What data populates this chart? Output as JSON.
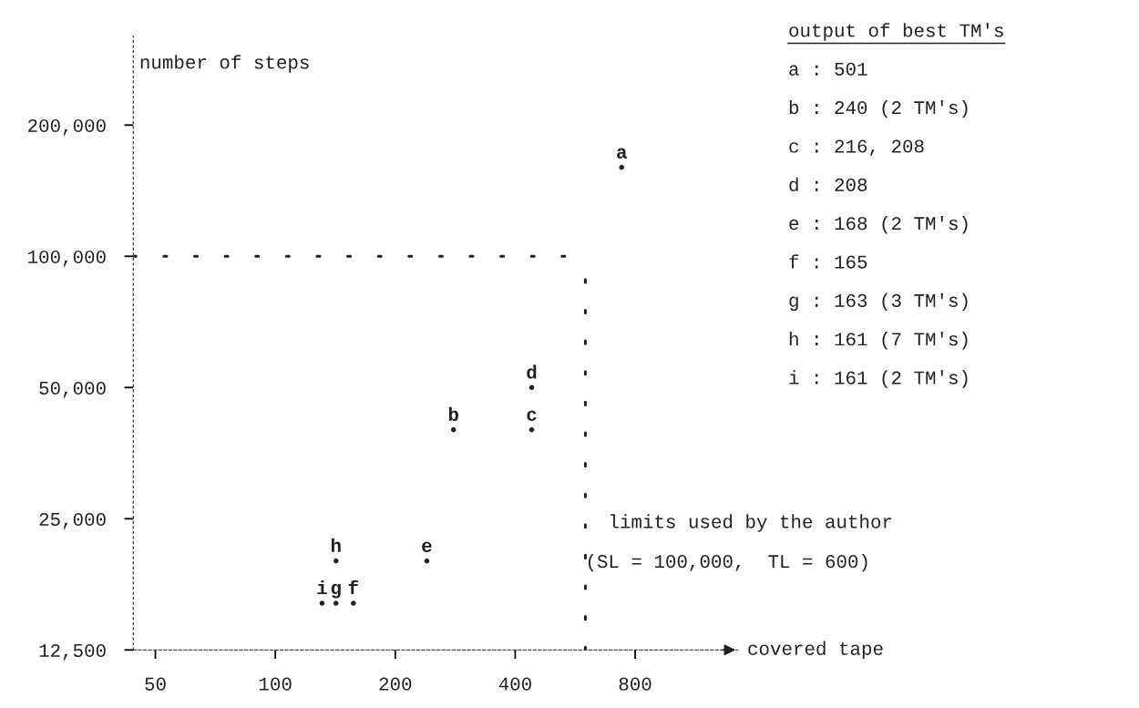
{
  "chart_data": {
    "type": "scatter",
    "ylabel": "number of steps",
    "xlabel": "covered tape",
    "legend_title": "output of best TM's",
    "log": "xy",
    "xlim": [
      44,
      1450
    ],
    "ylim": [
      12500,
      320000
    ],
    "xticks": [
      50,
      100,
      200,
      400,
      800
    ],
    "yticks": [
      {
        "value": 12500,
        "label": "12,500"
      },
      {
        "value": 25000,
        "label": "25,000"
      },
      {
        "value": 50000,
        "label": "50,000"
      },
      {
        "value": 100000,
        "label": "100,000"
      },
      {
        "value": 200000,
        "label": "200,000"
      }
    ],
    "marker": "circle",
    "grid": false,
    "legend": false,
    "series": [
      {
        "name": "a",
        "color": "#222222",
        "x": [
          740
        ],
        "values": [
          160000
        ]
      },
      {
        "name": "b",
        "color": "#222222",
        "x": [
          280
        ],
        "values": [
          40000
        ]
      },
      {
        "name": "c",
        "color": "#222222",
        "x": [
          440
        ],
        "values": [
          40000
        ]
      },
      {
        "name": "d",
        "color": "#222222",
        "x": [
          440
        ],
        "values": [
          50000
        ]
      },
      {
        "name": "e",
        "color": "#222222",
        "x": [
          240
        ],
        "values": [
          20000
        ]
      },
      {
        "name": "f",
        "color": "#222222",
        "x": [
          157
        ],
        "values": [
          16000
        ]
      },
      {
        "name": "g",
        "color": "#222222",
        "x": [
          142
        ],
        "values": [
          16000
        ]
      },
      {
        "name": "h",
        "color": "#222222",
        "x": [
          142
        ],
        "values": [
          20000
        ]
      },
      {
        "name": "i",
        "color": "#222222",
        "x": [
          131
        ],
        "values": [
          16000
        ]
      }
    ],
    "ref_lines": [
      {
        "axis": "y",
        "value": 100000,
        "line_style": "dotted",
        "color": "#222222"
      },
      {
        "axis": "x",
        "value": 600,
        "line_style": "dotted",
        "color": "#222222"
      }
    ],
    "annotations": [
      {
        "text": "limits used by the author\n(SL = 100,000,  TL = 600)",
        "x": 600,
        "y": 22000
      },
      "a : 501",
      "b : 240 (2 TM's)",
      "c : 216, 208",
      "d : 208",
      "e : 168 (2 TM's)",
      "f : 165",
      "g : 163 (3 TM's)",
      "h : 161 (7 TM's)",
      "i : 161 (2 TM's)"
    ]
  }
}
